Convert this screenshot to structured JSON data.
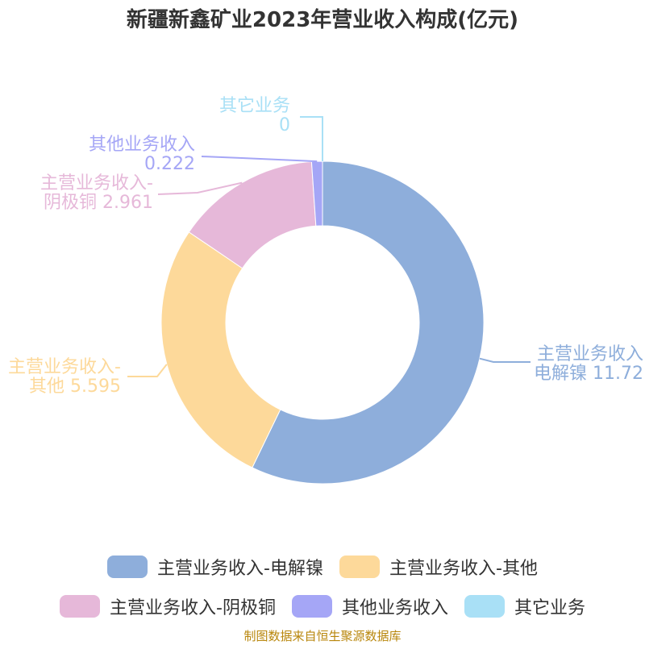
{
  "chart_data": {
    "type": "pie",
    "variant": "donut",
    "title": "新疆新鑫矿业2023年营业收入构成(亿元)",
    "unit": "亿元",
    "series": [
      {
        "name": "主营业务收入-电解镍",
        "value": 11.72,
        "value_label": "11.72",
        "color": "#8eaedb"
      },
      {
        "name": "主营业务收入-其他",
        "value": 5.595,
        "value_label": "5.595",
        "color": "#fdd99a"
      },
      {
        "name": "主营业务收入-阴极铜",
        "value": 2.961,
        "value_label": "2.961",
        "color": "#e6b8d9"
      },
      {
        "name": "其他业务收入",
        "value": 0.222,
        "value_label": "0.222",
        "color": "#a5a6f6"
      },
      {
        "name": "其它业务",
        "value": 0,
        "value_label": "0",
        "color": "#a9e0f6"
      }
    ],
    "legend_position": "bottom"
  },
  "footer": {
    "source": "制图数据来自恒生聚源数据库"
  }
}
